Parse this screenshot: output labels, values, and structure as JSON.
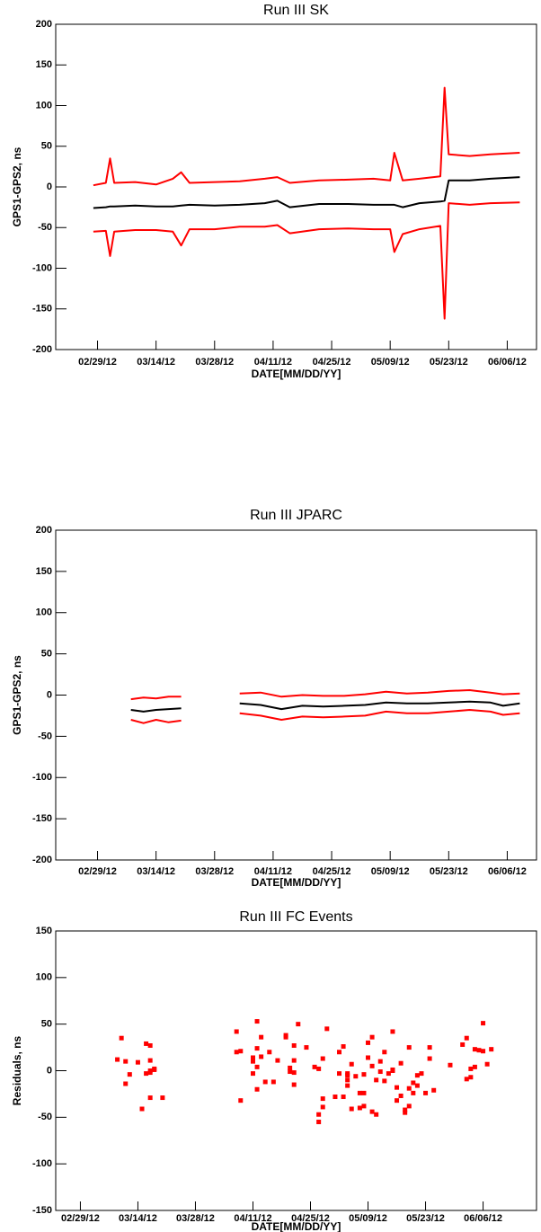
{
  "chart_data": [
    {
      "type": "line",
      "title": "Run III SK",
      "xlabel": "DATE[MM/DD/YY]",
      "ylabel": "GPS1-GPS2, ns",
      "x": [
        "02/28/12",
        "03/02/12",
        "03/03/12",
        "03/04/12",
        "03/09/12",
        "03/14/12",
        "03/18/12",
        "03/20/12",
        "03/22/12",
        "03/28/12",
        "04/03/12",
        "04/09/12",
        "04/12/12",
        "04/15/12",
        "04/22/12",
        "04/29/12",
        "05/05/12",
        "05/09/12",
        "05/10/12",
        "05/12/12",
        "05/16/12",
        "05/21/12",
        "05/22/12",
        "05/23/12",
        "05/28/12",
        "06/02/12",
        "06/09/12"
      ],
      "series": [
        {
          "color": "#ff0000",
          "values": [
            2,
            5,
            35,
            5,
            6,
            3,
            10,
            18,
            5,
            6,
            7,
            10,
            12,
            5,
            8,
            9,
            10,
            8,
            42,
            8,
            10,
            13,
            122,
            40,
            38,
            40,
            42
          ]
        },
        {
          "color": "#000000",
          "values": [
            -26,
            -25,
            -24,
            -24,
            -23,
            -24,
            -24,
            -23,
            -22,
            -23,
            -22,
            -20,
            -17,
            -25,
            -21,
            -21,
            -22,
            -22,
            -22,
            -25,
            -20,
            -18,
            -17,
            8,
            8,
            10,
            12
          ]
        },
        {
          "color": "#ff0000",
          "values": [
            -55,
            -54,
            -85,
            -55,
            -53,
            -53,
            -55,
            -72,
            -52,
            -52,
            -49,
            -49,
            -47,
            -57,
            -52,
            -51,
            -52,
            -52,
            -80,
            -58,
            -52,
            -48,
            -162,
            -20,
            -22,
            -20,
            -19
          ]
        }
      ],
      "xlim": [
        "02/19/12",
        "06/13/12"
      ],
      "xticks": [
        "02/29/12",
        "03/14/12",
        "03/28/12",
        "04/11/12",
        "04/25/12",
        "05/09/12",
        "05/23/12",
        "06/06/12"
      ],
      "ylim": [
        -200,
        200
      ],
      "yticks": [
        -200,
        -150,
        -100,
        -50,
        0,
        50,
        100,
        150,
        200
      ]
    },
    {
      "type": "line",
      "title": "Run III JPARC",
      "xlabel": "DATE[MM/DD/YY]",
      "ylabel": "GPS1-GPS2, ns",
      "x": [
        "03/08/12",
        "03/11/12",
        "03/14/12",
        "03/17/12",
        "03/20/12",
        "03/27/12",
        "04/03/12",
        "04/08/12",
        "04/13/12",
        "04/18/12",
        "04/23/12",
        "04/28/12",
        "05/03/12",
        "05/08/12",
        "05/13/12",
        "05/18/12",
        "05/23/12",
        "05/28/12",
        "06/02/12",
        "06/05/12",
        "06/09/12"
      ],
      "series": [
        {
          "color": "#ff0000",
          "values": [
            -5,
            -3,
            -4,
            -2,
            -2,
            null,
            2,
            3,
            -2,
            0,
            -1,
            -1,
            1,
            4,
            2,
            3,
            5,
            6,
            3,
            1,
            2
          ]
        },
        {
          "color": "#000000",
          "values": [
            -18,
            -20,
            -18,
            -17,
            -16,
            null,
            -10,
            -12,
            -17,
            -13,
            -14,
            -13,
            -12,
            -9,
            -10,
            -10,
            -9,
            -8,
            -9,
            -13,
            -10
          ]
        },
        {
          "color": "#ff0000",
          "values": [
            -30,
            -34,
            -30,
            -33,
            -31,
            null,
            -22,
            -25,
            -30,
            -26,
            -27,
            -26,
            -25,
            -20,
            -22,
            -22,
            -20,
            -18,
            -20,
            -24,
            -22
          ]
        }
      ],
      "xlim": [
        "02/19/12",
        "06/13/12"
      ],
      "xticks": [
        "02/29/12",
        "03/14/12",
        "03/28/12",
        "04/11/12",
        "04/25/12",
        "05/09/12",
        "05/23/12",
        "06/06/12"
      ],
      "ylim": [
        -200,
        200
      ],
      "yticks": [
        -200,
        -150,
        -100,
        -50,
        0,
        50,
        100,
        150,
        200
      ]
    },
    {
      "type": "scatter",
      "title": "Run III FC Events",
      "xlabel": "DATE[MM/DD/YY]",
      "ylabel": "Residuals, ns",
      "x": [
        "03/09/12",
        "03/10/12",
        "03/11/12",
        "03/11/12",
        "03/12/12",
        "03/14/12",
        "03/15/12",
        "03/16/12",
        "03/16/12",
        "03/17/12",
        "03/17/12",
        "03/17/12",
        "03/17/12",
        "03/17/12",
        "03/18/12",
        "03/18/12",
        "03/20/12",
        "04/07/12",
        "04/07/12",
        "04/08/12",
        "04/08/12",
        "04/11/12",
        "04/11/12",
        "04/11/12",
        "04/12/12",
        "04/12/12",
        "04/12/12",
        "04/12/12",
        "04/13/12",
        "04/13/12",
        "04/14/12",
        "04/15/12",
        "04/16/12",
        "04/17/12",
        "04/19/12",
        "04/19/12",
        "04/20/12",
        "04/20/12",
        "04/21/12",
        "04/21/12",
        "04/21/12",
        "04/21/12",
        "04/22/12",
        "04/24/12",
        "04/26/12",
        "04/27/12",
        "04/27/12",
        "04/27/12",
        "04/28/12",
        "04/28/12",
        "04/28/12",
        "04/29/12",
        "05/01/12",
        "05/02/12",
        "05/02/12",
        "05/03/12",
        "05/03/12",
        "05/04/12",
        "05/04/12",
        "05/04/12",
        "05/04/12",
        "05/05/12",
        "05/05/12",
        "05/06/12",
        "05/07/12",
        "05/07/12",
        "05/08/12",
        "05/08/12",
        "05/08/12",
        "05/09/12",
        "05/09/12",
        "05/10/12",
        "05/10/12",
        "05/10/12",
        "05/11/12",
        "05/11/12",
        "05/12/12",
        "05/12/12",
        "05/13/12",
        "05/13/12",
        "05/14/12",
        "05/15/12",
        "05/15/12",
        "05/15/12",
        "05/16/12",
        "05/16/12",
        "05/17/12",
        "05/17/12",
        "05/18/12",
        "05/18/12",
        "05/19/12",
        "05/19/12",
        "05/19/12",
        "05/20/12",
        "05/20/12",
        "05/21/12",
        "05/21/12",
        "05/22/12",
        "05/23/12",
        "05/24/12",
        "05/24/12",
        "05/25/12",
        "05/29/12",
        "06/01/12",
        "06/02/12",
        "06/02/12",
        "06/03/12",
        "06/03/12",
        "06/04/12",
        "06/04/12",
        "06/05/12",
        "06/06/12",
        "06/06/12",
        "06/07/12",
        "06/08/12"
      ],
      "series": [
        {
          "color": "#ff0000",
          "values": [
            12,
            35,
            10,
            -14,
            -4,
            9,
            -41,
            29,
            -3,
            0,
            27,
            -29,
            11,
            -2,
            1,
            2,
            -29,
            20,
            42,
            21,
            -32,
            14,
            10,
            -3,
            53,
            24,
            -20,
            4,
            15,
            36,
            -12,
            20,
            -12,
            11,
            38,
            36,
            3,
            -1,
            27,
            11,
            -2,
            -15,
            50,
            25,
            4,
            -47,
            -55,
            2,
            -39,
            13,
            -30,
            45,
            -28,
            -3,
            20,
            -28,
            26,
            -5,
            -10,
            -3,
            -16,
            -41,
            7,
            -6,
            -24,
            -40,
            -4,
            -24,
            -38,
            14,
            30,
            5,
            36,
            -44,
            -10,
            -47,
            10,
            -1,
            20,
            -11,
            -3,
            1,
            42,
            0,
            -18,
            -32,
            -27,
            8,
            -42,
            -45,
            -38,
            25,
            -19,
            -13,
            -24,
            -5,
            -16,
            -3,
            -24,
            25,
            13,
            -21,
            6,
            28,
            -9,
            35,
            -7,
            2,
            4,
            23,
            22,
            51,
            21,
            7,
            23
          ]
        }
      ],
      "xlim": [
        "02/23/12",
        "06/19/12"
      ],
      "xticks": [
        "02/29/12",
        "03/14/12",
        "03/28/12",
        "04/11/12",
        "04/25/12",
        "05/09/12",
        "05/23/12",
        "06/06/12"
      ],
      "ylim": [
        -150,
        150
      ],
      "yticks": [
        -150,
        -100,
        -50,
        0,
        50,
        100,
        150
      ]
    }
  ]
}
